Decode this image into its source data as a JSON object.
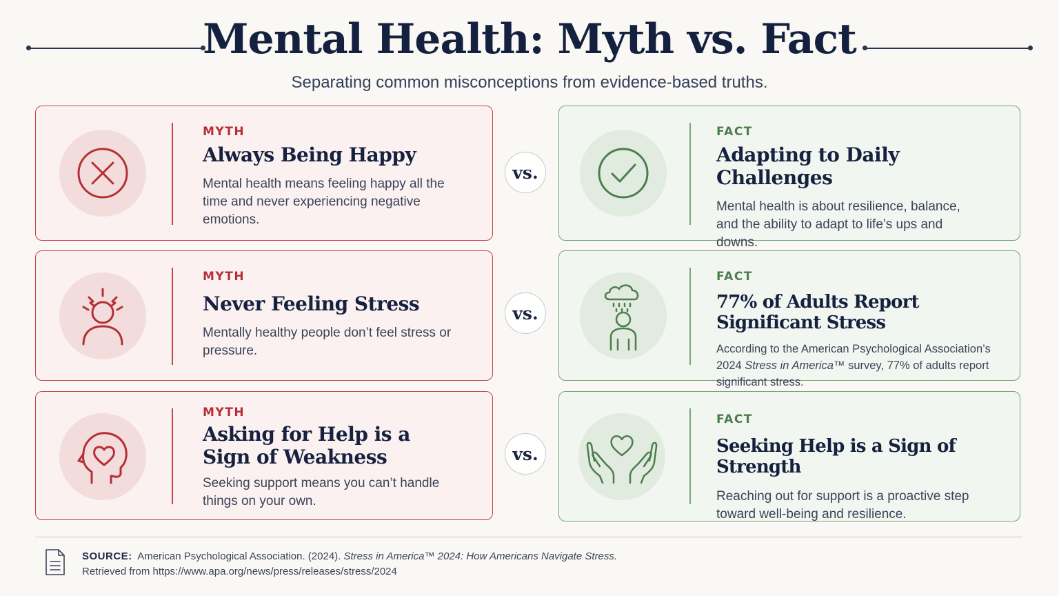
{
  "header": {
    "title": "Mental Health: Myth vs. Fact",
    "subtitle": "Separating common misconceptions from evidence-based truths."
  },
  "colors": {
    "myth_accent": "#b52f36",
    "fact_accent": "#4d7d4d",
    "myth_bg": "#fbf1f1",
    "fact_bg": "#f2f6f0",
    "title": "#13213f"
  },
  "comparisons": [
    {
      "myth": {
        "label": "MYTH",
        "icon": "x-circle-icon",
        "heading": "Always Being Happy",
        "body": "Mental health means feeling happy all the time and never experiencing negative emotions."
      },
      "vs": "vs.",
      "fact": {
        "label": "FACT",
        "icon": "check-circle-icon",
        "heading": "Adapting to Daily Challenges",
        "body": "Mental health is about resilience, balance, and the ability to adapt to life’s ups and downs."
      }
    },
    {
      "myth": {
        "label": "MYTH",
        "icon": "stressed-person-icon",
        "heading": "Never Feeling Stress",
        "body": "Mentally healthy people don’t feel stress or pressure."
      },
      "vs": "vs.",
      "fact": {
        "label": "FACT",
        "icon": "person-rain-cloud-icon",
        "heading": "77% of Adults Report Significant Stress",
        "body_pre": "According to the American Psychological Association’s 2024 ",
        "body_em": "Stress in America",
        "body_post": "™ survey, 77% of adults report significant stress."
      }
    },
    {
      "myth": {
        "label": "MYTH",
        "icon": "head-heart-icon",
        "heading": "Asking for Help is a Sign of Weakness",
        "body": "Seeking support means you can’t handle things on your own."
      },
      "vs": "vs.",
      "fact": {
        "label": "FACT",
        "icon": "hands-heart-icon",
        "heading": "Seeking Help is a Sign of Strength",
        "body": "Reaching out for support is a proactive step toward well-being and resilience."
      }
    }
  ],
  "footer": {
    "icon": "document-icon",
    "source_label": "SOURCE:",
    "citation_pre": "American Psychological Association. (2024). ",
    "citation_em": "Stress in America™ 2024: How Americans Navigate Stress.",
    "retrieved": "Retrieved from https://www.apa.org/news/press/releases/stress/2024"
  }
}
